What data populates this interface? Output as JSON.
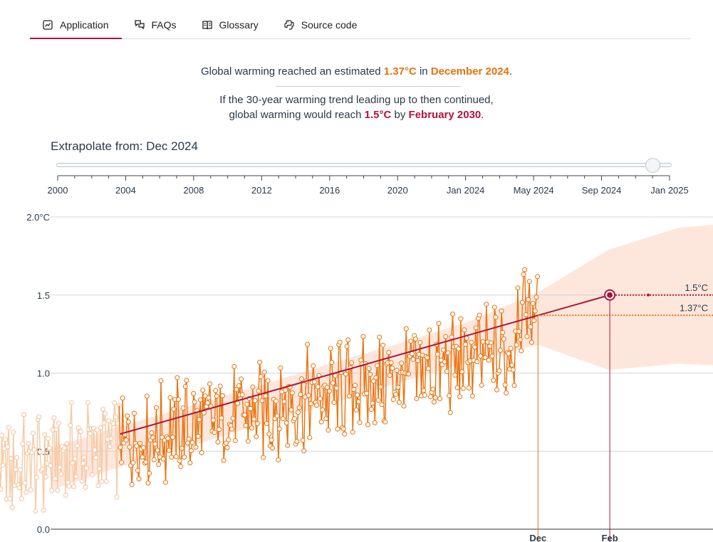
{
  "tabs": [
    {
      "label": "Application",
      "icon": "line-chart-icon",
      "active": true
    },
    {
      "label": "FAQs",
      "icon": "chat-bubbles-icon",
      "active": false
    },
    {
      "label": "Glossary",
      "icon": "book-icon",
      "active": false
    },
    {
      "label": "Source code",
      "icon": "python-logo-icon",
      "active": false
    }
  ],
  "headline": {
    "line1_prefix": "Global warming reached an estimated ",
    "current_value": "1.37°C",
    "line1_mid": " in ",
    "current_date": "December 2024",
    "line1_suffix": ".",
    "line2a": "If the 30-year warming trend leading up to then continued,",
    "line2b_prefix": "global warming would reach ",
    "target_value": "1.5°C",
    "line2b_mid": " by ",
    "target_date": "February 2030",
    "line2b_suffix": "."
  },
  "extrapolate": {
    "label": "Extrapolate from: Dec 2024",
    "slider_value": "Dec 2024",
    "slider_fraction": 0.97,
    "tick_labels": [
      "2000",
      "2004",
      "2008",
      "2012",
      "2016",
      "2020",
      "Jan 2024",
      "May 2024",
      "Sep 2024",
      "Jan 2025"
    ]
  },
  "colors": {
    "accent": "#b0143c",
    "orange": "#e8720c",
    "band": "#fde3d7",
    "grid": "#d0d4d9"
  },
  "chart_data": {
    "type": "scatter",
    "y_ticks": [
      "2.0°C",
      "1.5",
      "1.0",
      "0.5",
      "0.0"
    ],
    "y_tick_values": [
      2.0,
      1.5,
      1.0,
      0.5,
      0.0
    ],
    "ylim": [
      0.0,
      2.0
    ],
    "xlim": [
      1990.0,
      2037.5
    ],
    "grid": true,
    "x_markers": [
      {
        "label": "Dec",
        "x": 2024.95,
        "color": "#e8720c"
      },
      {
        "label": "Feb",
        "x": 2030.1,
        "color": "#b0143c"
      }
    ],
    "thresholds": [
      {
        "label": "1.5°C",
        "value": 1.5,
        "color": "#b0143c"
      },
      {
        "label": "1.37°C",
        "value": 1.37,
        "color": "#e8720c"
      }
    ],
    "trend_line": {
      "x": [
        1995.0,
        2030.1
      ],
      "y": [
        0.61,
        1.5
      ]
    },
    "target_point": {
      "x": 2030.1,
      "y": 1.5
    },
    "uncertainty_band": {
      "x": [
        1990,
        1995,
        2000,
        2005,
        2010,
        2015,
        2020,
        2025,
        2030,
        2035,
        2037.5
      ],
      "upper": [
        0.52,
        0.66,
        0.79,
        0.92,
        1.06,
        1.19,
        1.33,
        1.52,
        1.79,
        1.93,
        1.95
      ],
      "lower": [
        0.25,
        0.4,
        0.53,
        0.67,
        0.8,
        0.94,
        1.07,
        1.18,
        1.02,
        1.06,
        1.05
      ]
    },
    "monthly_anomalies": {
      "x_start": 1985.0,
      "x_end": 2024.95,
      "faded_before": 1995.0
    }
  }
}
